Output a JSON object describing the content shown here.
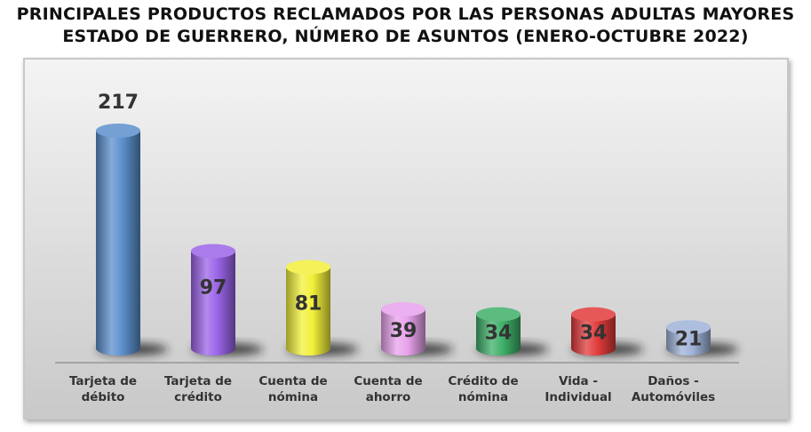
{
  "title_line1": "PRINCIPALES PRODUCTOS RECLAMADOS POR LAS PERSONAS ADULTAS MAYORES",
  "title_line2": "ESTADO DE GUERRERO, NÚMERO DE ASUNTOS (ENERO-OCTUBRE 2022)",
  "chart_data": {
    "type": "bar",
    "title": "PRINCIPALES PRODUCTOS RECLAMADOS POR LAS PERSONAS ADULTAS MAYORES ESTADO DE GUERRERO, NÚMERO DE ASUNTOS (ENERO-OCTUBRE 2022)",
    "xlabel": "",
    "ylabel": "",
    "ylim": [
      0,
      217
    ],
    "grid": false,
    "legend": "none",
    "categories": [
      [
        "Tarjeta de",
        "débito"
      ],
      [
        "Tarjeta de",
        "crédito"
      ],
      [
        "Cuenta de",
        "nómina"
      ],
      [
        "Cuenta de",
        "ahorro"
      ],
      [
        "Crédito de",
        "nómina"
      ],
      [
        "Vida -",
        "Individual"
      ],
      [
        "Daños -",
        "Automóviles"
      ]
    ],
    "values": [
      217,
      97,
      81,
      39,
      34,
      34,
      21
    ],
    "colors": [
      "#5b8fcc",
      "#9b64e8",
      "#f2f03a",
      "#e8a2ec",
      "#3fb06a",
      "#e23b3b",
      "#9fb2d8"
    ]
  }
}
